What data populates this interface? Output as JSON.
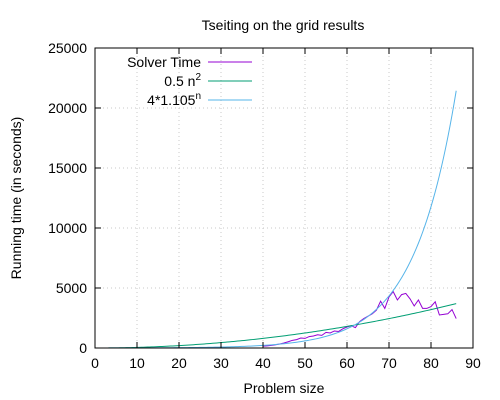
{
  "chart_data": {
    "type": "line",
    "title": "Tseiting on the grid results",
    "xlabel": "Problem size",
    "ylabel": "Running time (in seconds)",
    "xlim": [
      0,
      90
    ],
    "ylim": [
      0,
      25000
    ],
    "x_ticks": [
      0,
      10,
      20,
      30,
      40,
      50,
      60,
      70,
      80,
      90
    ],
    "y_ticks": [
      0,
      5000,
      10000,
      15000,
      20000,
      25000
    ],
    "grid": true,
    "legend_position": "top-left",
    "series": [
      {
        "name": "Solver Time",
        "color": "#9400d3",
        "kind": "data",
        "x": [
          40,
          41,
          42,
          43,
          44,
          45,
          46,
          47,
          48,
          49,
          50,
          51,
          52,
          53,
          54,
          55,
          56,
          57,
          58,
          59,
          60,
          61,
          62,
          63,
          64,
          65,
          66,
          67,
          68,
          69,
          70,
          71,
          72,
          73,
          74,
          75,
          76,
          77,
          78,
          79,
          80,
          81,
          82,
          83,
          84,
          85,
          86
        ],
        "y": [
          160,
          180,
          220,
          270,
          330,
          420,
          520,
          640,
          700,
          830,
          800,
          950,
          1000,
          1100,
          1050,
          1300,
          1250,
          1420,
          1380,
          1600,
          1750,
          1850,
          1700,
          2200,
          2450,
          2650,
          2850,
          3150,
          3900,
          3300,
          4250,
          4700,
          4000,
          4450,
          4550,
          4100,
          3500,
          4000,
          3300,
          3300,
          3450,
          3850,
          2750,
          2800,
          2850,
          3200,
          2450
        ]
      },
      {
        "name": "0.5 n",
        "name_superscript": "2",
        "color": "#009e73",
        "kind": "function",
        "formula": "0.5*x^2",
        "x_range": [
          0,
          86
        ]
      },
      {
        "name": "4*1.105",
        "name_superscript": "n",
        "color": "#56b4e9",
        "kind": "function",
        "formula": "4*1.105^x",
        "x_range": [
          0,
          86
        ]
      }
    ]
  }
}
